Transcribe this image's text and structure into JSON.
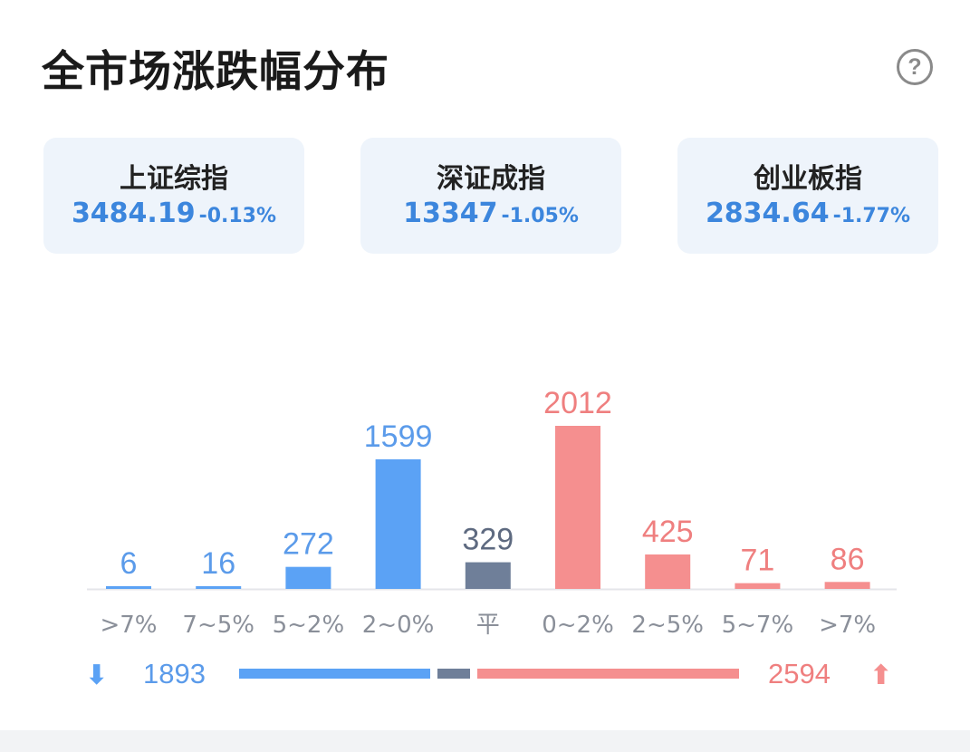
{
  "header": {
    "title": "全市场涨跌幅分布",
    "help_icon": "help-circle-icon"
  },
  "indices": [
    {
      "name": "上证综指",
      "value": "3484.19",
      "change": "-0.13%"
    },
    {
      "name": "深证成指",
      "value": "13347",
      "change": "-1.05%"
    },
    {
      "name": "创业板指",
      "value": "2834.64",
      "change": "-1.77%"
    }
  ],
  "chart_data": {
    "type": "bar",
    "categories": [
      ">7%",
      "7~5%",
      "5~2%",
      "2~0%",
      "平",
      "0~2%",
      "2~5%",
      "5~7%",
      ">7%"
    ],
    "values": [
      6,
      16,
      272,
      1599,
      329,
      2012,
      425,
      71,
      86
    ],
    "bar_colors": [
      "#5ba2f5",
      "#5ba2f5",
      "#5ba2f5",
      "#5ba2f5",
      "#6f7f99",
      "#f58f8f",
      "#f58f8f",
      "#f58f8f",
      "#f58f8f"
    ],
    "label_colors": [
      "#5b9bea",
      "#5b9bea",
      "#5b9bea",
      "#5b9bea",
      "#5e6a80",
      "#ef7f7f",
      "#ef7f7f",
      "#ef7f7f",
      "#ef7f7f"
    ],
    "ylim": [
      0,
      2012
    ]
  },
  "summary": {
    "down_count": "1893",
    "up_count": "2594",
    "flat_count": 329,
    "down_icon": "arrow-down-icon",
    "up_icon": "arrow-up-icon",
    "down_color": "#5ba2f5",
    "flat_color": "#6f7f99",
    "up_color": "#f58f8f"
  }
}
